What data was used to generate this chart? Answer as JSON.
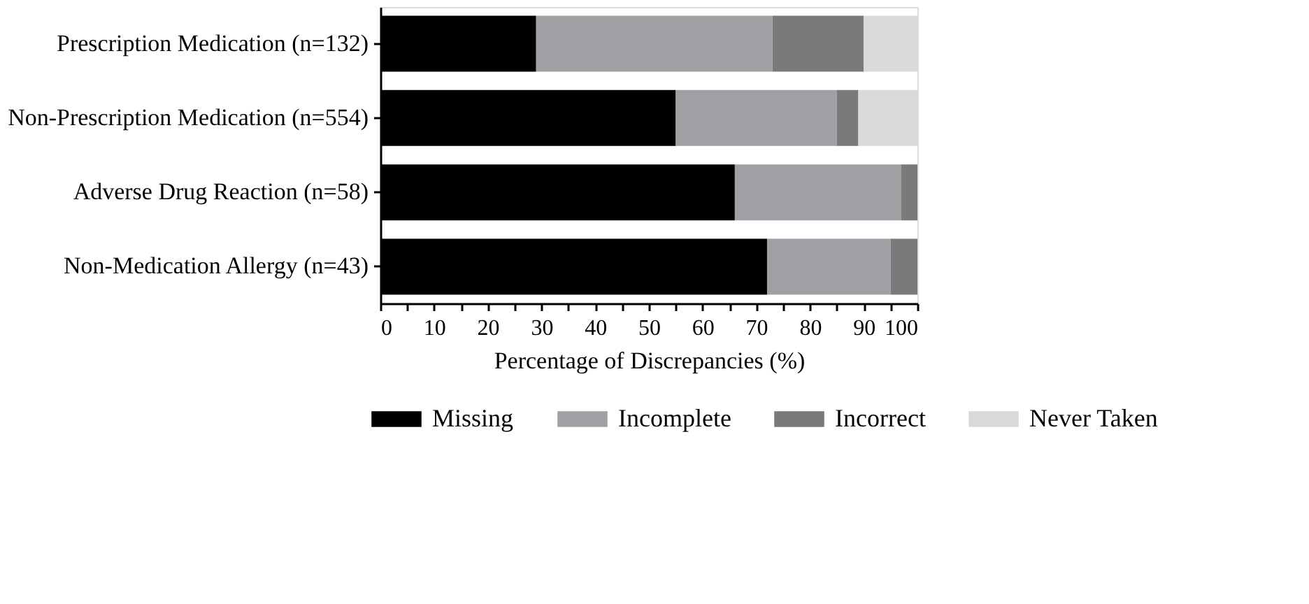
{
  "chart_data": {
    "type": "bar",
    "orientation": "horizontal",
    "stacked": true,
    "categories": [
      "Prescription Medication (n=132)",
      "Non-Prescription Medication (n=554)",
      "Adverse Drug Reaction (n=58)",
      "Non-Medication Allergy (n=43)"
    ],
    "series": [
      {
        "name": "Missing",
        "color": "#000000",
        "values": [
          29,
          55,
          66,
          72
        ]
      },
      {
        "name": "Incomplete",
        "color": "#a0a0a4",
        "values": [
          44,
          30,
          31,
          23
        ]
      },
      {
        "name": "Incorrect",
        "color": "#7a7a7a",
        "values": [
          17,
          4,
          3,
          5
        ]
      },
      {
        "name": "Never Taken",
        "color": "#d9d9d9",
        "values": [
          10,
          11,
          0,
          0
        ]
      }
    ],
    "xlabel": "Percentage of Discrepancies (%)",
    "xlim": [
      0,
      100
    ],
    "xticks": [
      0,
      {
        "value": 5,
        "label": null
      },
      10,
      {
        "value": 15,
        "label": null
      },
      20,
      {
        "value": 25,
        "label": null
      },
      30,
      {
        "value": 35,
        "label": null
      },
      40,
      {
        "value": 45,
        "label": null
      },
      50,
      {
        "value": 55,
        "label": null
      },
      60,
      {
        "value": 65,
        "label": null
      },
      70,
      {
        "value": 75,
        "label": null
      },
      80,
      {
        "value": 85,
        "label": null
      },
      90,
      {
        "value": 95,
        "label": null
      },
      100
    ],
    "grid": false,
    "legend": "bottom"
  }
}
